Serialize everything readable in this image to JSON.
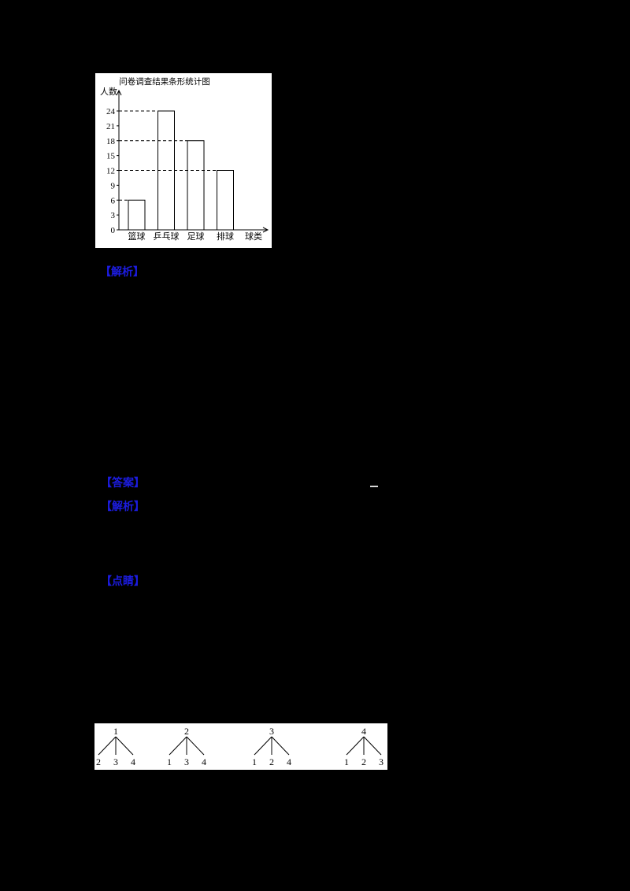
{
  "colors": {
    "page_background": "#000000",
    "panel_background": "#FFFFFF",
    "accent_blue": "#1C1CE0",
    "ink": "#000000"
  },
  "chart_data": {
    "type": "bar",
    "title": "问卷调查结果条形统计图",
    "ylabel": "人数",
    "xlabel": "球类",
    "categories": [
      "篮球",
      "乒乓球",
      "足球",
      "排球"
    ],
    "values": [
      6,
      24,
      18,
      12
    ],
    "ylim": [
      0,
      24
    ],
    "yticks": [
      0,
      3,
      6,
      9,
      12,
      15,
      18,
      21,
      24
    ],
    "grid": "dashed guide line from y-axis to each bar top",
    "legend": "none",
    "bar_fill": "#FFFFFF",
    "bar_stroke": "#000000"
  },
  "labels": [
    {
      "text": "【解析】"
    },
    {
      "text": "【答案】"
    },
    {
      "text": "【解析】"
    },
    {
      "text": "【点睛】"
    }
  ],
  "trees": [
    {
      "root": "1",
      "children": [
        "2",
        "3",
        "4"
      ]
    },
    {
      "root": "2",
      "children": [
        "1",
        "3",
        "4"
      ]
    },
    {
      "root": "3",
      "children": [
        "1",
        "2",
        "4"
      ]
    },
    {
      "root": "4",
      "children": [
        "1",
        "2",
        "3"
      ]
    }
  ]
}
